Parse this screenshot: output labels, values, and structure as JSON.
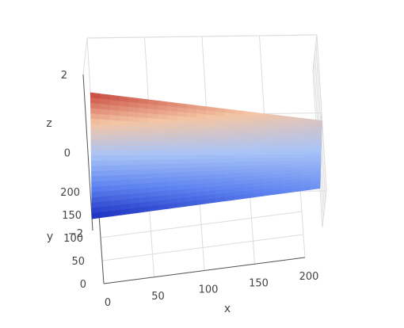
{
  "chart_data": {
    "type": "surface",
    "x_ticks": [
      "0",
      "50",
      "100",
      "150",
      "200"
    ],
    "y_ticks": [
      "0",
      "50",
      "100",
      "150",
      "200"
    ],
    "z_ticks": [
      "−2",
      "0",
      "2"
    ],
    "xlabel": "x",
    "ylabel": "y",
    "zlabel": "z",
    "xlim": [
      0,
      200
    ],
    "ylim": [
      0,
      200
    ],
    "zlim": [
      -2,
      2
    ],
    "colorscale": [
      "#1a2dbf",
      "#5d82f0",
      "#a9c4f7",
      "#f4c5a4",
      "#c6423a"
    ],
    "surface_corners": [
      {
        "x": 0,
        "y": 0,
        "z": -1.7
      },
      {
        "x": 200,
        "y": 0,
        "z": -1.0
      },
      {
        "x": 200,
        "y": 200,
        "z": -0.2
      },
      {
        "x": 0,
        "y": 200,
        "z": 0.6
      }
    ],
    "grid": true
  }
}
